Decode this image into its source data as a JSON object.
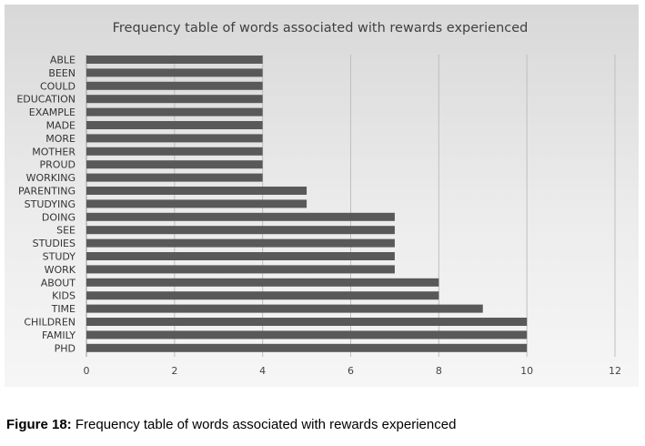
{
  "chart_data": {
    "type": "bar",
    "orientation": "horizontal",
    "title": "Frequency table of words associated with rewards experienced",
    "categories": [
      "ABLE",
      "BEEN",
      "COULD",
      "EDUCATION",
      "EXAMPLE",
      "MADE",
      "MORE",
      "MOTHER",
      "PROUD",
      "WORKING",
      "PARENTING",
      "STUDYING",
      "DOING",
      "SEE",
      "STUDIES",
      "STUDY",
      "WORK",
      "ABOUT",
      "KIDS",
      "TIME",
      "CHILDREN",
      "FAMILY",
      "PHD"
    ],
    "values": [
      4,
      4,
      4,
      4,
      4,
      4,
      4,
      4,
      4,
      4,
      5,
      5,
      7,
      7,
      7,
      7,
      7,
      8,
      8,
      9,
      10,
      10,
      10
    ],
    "xlim": [
      0,
      12
    ],
    "xticks": [
      0,
      2,
      4,
      6,
      8,
      10,
      12
    ],
    "grid": "vertical gridlines",
    "bar_color": "#595959"
  },
  "caption": {
    "label": "Figure 18:",
    "text": " Frequency table of words associated with rewards experienced"
  }
}
